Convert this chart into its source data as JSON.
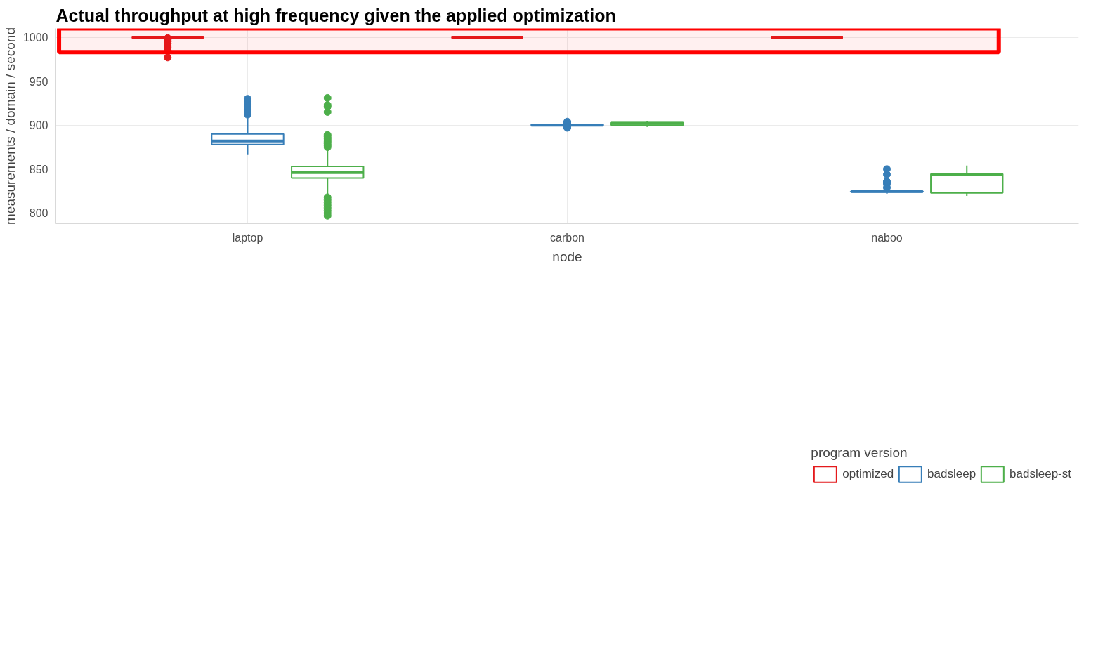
{
  "chart_data": {
    "type": "box",
    "title": "Actual throughput at high frequency given the applied optimization",
    "xlabel": "node",
    "ylabel": "measurements / domain / second",
    "legend_title": "program version",
    "categories": [
      "laptop",
      "carbon",
      "naboo"
    ],
    "ylim": [
      788,
      1010
    ],
    "yticks": [
      800,
      850,
      900,
      950,
      1000
    ],
    "grid": true,
    "legend": "bottom",
    "bands": [
      {
        "axis": "y",
        "from": 983,
        "to": 1010,
        "color": "#ff0000"
      }
    ],
    "series": [
      {
        "name": "optimized",
        "color": "#e41a1c",
        "boxes": [
          {
            "low": 1000,
            "q1": 1000,
            "median": 1000,
            "q3": 1000,
            "high": 1000,
            "outliers": [
              999,
              997,
              995,
              993,
              990,
              988,
              985,
              977
            ]
          },
          {
            "low": 1000,
            "q1": 1000,
            "median": 1000,
            "q3": 1000,
            "high": 1000
          },
          {
            "low": 1000,
            "q1": 1000,
            "median": 1000,
            "q3": 1000,
            "high": 1000
          }
        ]
      },
      {
        "name": "badsleep",
        "color": "#377eb8",
        "boxes": [
          {
            "low": 866,
            "q1": 878,
            "median": 882,
            "q3": 890,
            "high": 908,
            "outliers": [
              912,
              915,
              918,
              921,
              924,
              927,
              930
            ]
          },
          {
            "low": 898.5,
            "q1": 899.5,
            "median": 900,
            "q3": 901,
            "high": 902,
            "outliers": [
              897,
              898,
              902.5,
              903,
              904
            ]
          },
          {
            "low": 822,
            "q1": 824,
            "median": 824.5,
            "q3": 825,
            "high": 826,
            "outliers": [
              829,
              833,
              835,
              836,
              844,
              850
            ]
          }
        ]
      },
      {
        "name": "badsleep-st",
        "color": "#4daf4a",
        "boxes": [
          {
            "low": 820,
            "q1": 840,
            "median": 846,
            "q3": 853,
            "high": 874,
            "outliers": [
              875,
              877,
              879,
              881,
              883,
              885,
              887,
              889,
              915,
              921,
              923,
              931,
              818,
              815,
              812,
              809,
              806,
              803,
              800,
              797
            ]
          },
          {
            "low": 898,
            "q1": 900,
            "median": 902,
            "q3": 903,
            "high": 905
          },
          {
            "low": 819.5,
            "q1": 823,
            "median": 843.5,
            "q3": 844.5,
            "high": 854
          }
        ]
      }
    ]
  }
}
